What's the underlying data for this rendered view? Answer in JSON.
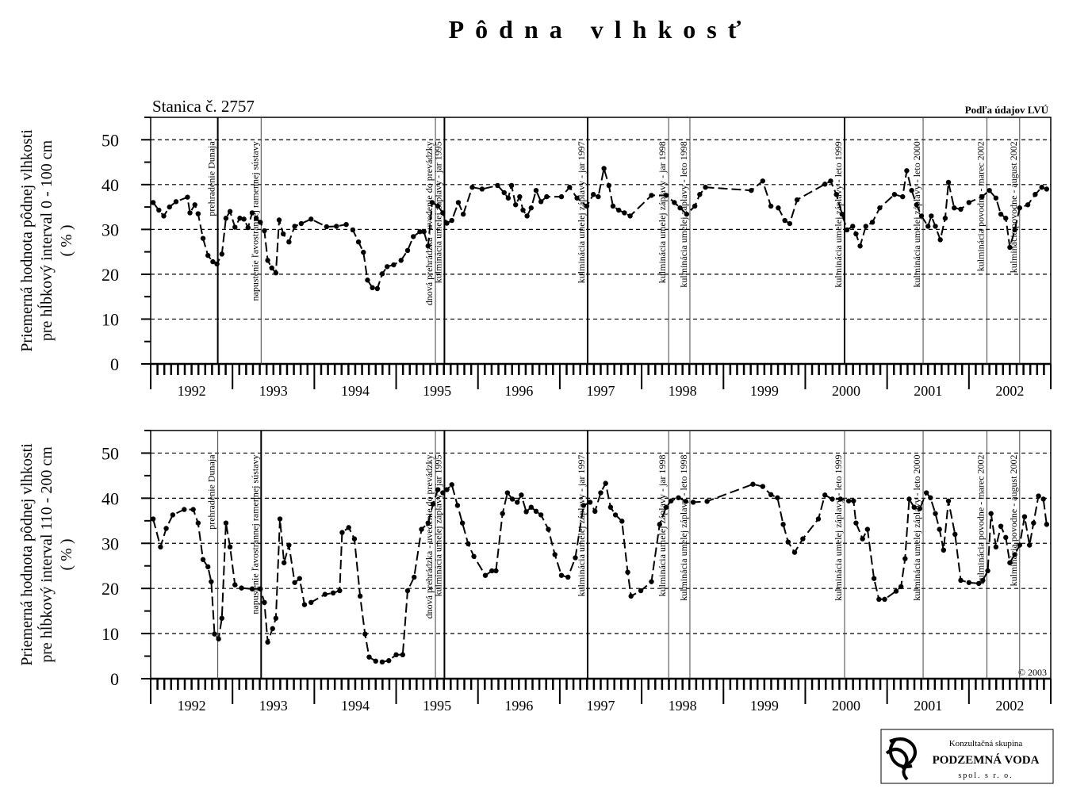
{
  "title": "Pôdna vlhkosť",
  "station": "Stanica č. 2757",
  "source": "Podľa údajov LVÚ",
  "copyright": "© 2003",
  "logo": {
    "line1": "Konzultačná skupina",
    "line2": "PODZEMNÁ VODA",
    "line3": "spol. s r. o."
  },
  "chart_data": [
    {
      "type": "line",
      "ylabel": [
        "Priemerná hodnota pôdnej vlhkosti",
        "pre hĺbkový interval 0 - 100 cm",
        "( % )"
      ],
      "xlim": [
        1992,
        2003
      ],
      "ylim": [
        0,
        55
      ],
      "yticks": [
        0,
        10,
        20,
        30,
        40,
        50
      ],
      "grid": true,
      "xticks": [
        {
          "value": 1992.5,
          "label": "1992"
        },
        {
          "value": 1993.5,
          "label": "1993"
        },
        {
          "value": 1994.5,
          "label": "1994"
        },
        {
          "value": 1995.5,
          "label": "1995"
        },
        {
          "value": 1996.5,
          "label": "1996"
        },
        {
          "value": 1997.5,
          "label": "1997"
        },
        {
          "value": 1998.5,
          "label": "1998"
        },
        {
          "value": 1999.5,
          "label": "1999"
        },
        {
          "value": 2000.5,
          "label": "2000"
        },
        {
          "value": 2001.5,
          "label": "2001"
        },
        {
          "value": 2002.5,
          "label": "2002"
        }
      ],
      "events": [
        {
          "x": 1992.82,
          "label": "prehradenie Dunaja",
          "thick": true
        },
        {
          "x": 1993.35,
          "label": "napustenie ľavostrannej ramennej sústavy",
          "thick": false
        },
        {
          "x": 1995.48,
          "label": "dnová prehrádzka - uvedenie do prevádzky",
          "thick": false
        },
        {
          "x": 1995.59,
          "label": "kulminácia umelej záplavy - jar 1995",
          "thick": true
        },
        {
          "x": 1997.34,
          "label": "kulminácia umelej záplavy - jar 1997",
          "thick": true
        },
        {
          "x": 1998.33,
          "label": "kulminácia umelej záplavy - jar 1998",
          "thick": false
        },
        {
          "x": 1998.59,
          "label": "kulminácia umelej záplavy - leto 1998",
          "thick": false
        },
        {
          "x": 2000.48,
          "label": "kulminácia umelej záplavy - leto 1999",
          "thick": true
        },
        {
          "x": 2001.44,
          "label": "kulminácia umelej záplavy - leto 2000",
          "thick": false
        },
        {
          "x": 2002.22,
          "label": "kulminácia povodne - marec 2002",
          "thick": false
        },
        {
          "x": 2002.62,
          "label": "kulminácia povodne - august 2002",
          "thick": false
        }
      ],
      "series": [
        {
          "color": "#000000",
          "x": [
            1992.03,
            1992.1,
            1992.16,
            1992.23,
            1992.31,
            1992.45,
            1992.48,
            1992.54,
            1992.58,
            1992.64,
            1992.7,
            1992.76,
            1992.81,
            1992.87,
            1992.92,
            1992.97,
            1993.03,
            1993.09,
            1993.14,
            1993.19,
            1993.24,
            1993.29,
            1993.34,
            1993.39,
            1993.43,
            1993.48,
            1993.53,
            1993.57,
            1993.62,
            1993.69,
            1993.76,
            1993.84,
            1993.96,
            1994.15,
            1994.27,
            1994.39,
            1994.47,
            1994.54,
            1994.6,
            1994.65,
            1994.71,
            1994.77,
            1994.83,
            1994.89,
            1994.97,
            1995.06,
            1995.14,
            1995.21,
            1995.29,
            1995.34,
            1995.39,
            1995.44,
            1995.51,
            1995.57,
            1995.62,
            1995.68,
            1995.76,
            1995.82,
            1995.93,
            1996.05,
            1996.24,
            1996.32,
            1996.37,
            1996.41,
            1996.46,
            1996.51,
            1996.55,
            1996.6,
            1996.65,
            1996.71,
            1996.77,
            1996.84,
            1997.02,
            1997.12,
            1997.21,
            1997.33,
            1997.41,
            1997.47,
            1997.54,
            1997.6,
            1997.65,
            1997.72,
            1997.79,
            1997.86,
            1998.12,
            1998.3,
            1998.4,
            1998.47,
            1998.55,
            1998.65,
            1998.71,
            1998.78,
            1999.34,
            1999.48,
            1999.58,
            1999.67,
            1999.75,
            1999.81,
            1999.9,
            2000.24,
            2000.31,
            2000.38,
            2000.45,
            2000.51,
            2000.58,
            2000.62,
            2000.67,
            2000.74,
            2000.82,
            2000.91,
            2001.09,
            2001.19,
            2001.24,
            2001.3,
            2001.36,
            2001.42,
            2001.5,
            2001.54,
            2001.59,
            2001.65,
            2001.71,
            2001.75,
            2001.82,
            2001.9,
            2002.0,
            2002.16,
            2002.25,
            2002.33,
            2002.39,
            2002.45,
            2002.5,
            2002.56,
            2002.62,
            2002.72,
            2002.81,
            2002.89,
            2002.95
          ],
          "values": [
            36,
            34.3,
            33,
            35,
            36.2,
            37.2,
            33.7,
            35.5,
            33.5,
            28,
            24.2,
            22.8,
            22.3,
            24.5,
            32.5,
            34,
            30.5,
            32.5,
            32.3,
            30.4,
            33.7,
            32.5,
            31.6,
            29.7,
            23.1,
            21.4,
            20.3,
            32.1,
            29,
            27.2,
            30.7,
            31.3,
            32.3,
            30.6,
            30.7,
            31.1,
            29.9,
            27.2,
            24.9,
            18.7,
            17,
            16.8,
            20.1,
            21.7,
            22.1,
            23.1,
            25.3,
            28.4,
            29.5,
            29.5,
            26.3,
            36,
            35.2,
            33.7,
            31.4,
            32,
            36,
            33.4,
            39.4,
            39,
            39.8,
            38.2,
            37,
            39.8,
            35.5,
            37.3,
            34.3,
            33,
            34.8,
            38.7,
            36.2,
            37.3,
            37.3,
            39.4,
            37,
            35.2,
            37.8,
            37.3,
            43.6,
            39.8,
            35.2,
            34.3,
            33.7,
            33,
            37.6,
            37.6,
            36,
            34.8,
            33.4,
            35.2,
            37.8,
            39.4,
            38.7,
            40.8,
            35.2,
            34.8,
            32,
            31.3,
            36.6,
            40.1,
            40.8,
            37.8,
            33.4,
            29.9,
            30.7,
            29,
            26.3,
            30.7,
            31.6,
            34.8,
            37.8,
            37.3,
            43.1,
            38.7,
            35.5,
            33,
            30.7,
            33,
            30.7,
            27.7,
            32.5,
            40.5,
            34.8,
            34.5,
            36,
            37.3,
            38.7,
            37,
            33.4,
            32.5,
            26,
            29.9,
            34.8,
            35.5,
            37.8,
            39.4,
            39
          ]
        }
      ]
    },
    {
      "type": "line",
      "ylabel": [
        "Priemerná hodnota pôdnej vlhkosti",
        "pre hĺbkový interval 110 - 200 cm",
        "( % )"
      ],
      "xlim": [
        1992,
        2003
      ],
      "ylim": [
        0,
        55
      ],
      "yticks": [
        0,
        10,
        20,
        30,
        40,
        50
      ],
      "grid": true,
      "xticks": [
        {
          "value": 1992.5,
          "label": "1992"
        },
        {
          "value": 1993.5,
          "label": "1993"
        },
        {
          "value": 1994.5,
          "label": "1994"
        },
        {
          "value": 1995.5,
          "label": "1995"
        },
        {
          "value": 1996.5,
          "label": "1996"
        },
        {
          "value": 1997.5,
          "label": "1997"
        },
        {
          "value": 1998.5,
          "label": "1998"
        },
        {
          "value": 1999.5,
          "label": "1999"
        },
        {
          "value": 2000.5,
          "label": "2000"
        },
        {
          "value": 2001.5,
          "label": "2001"
        },
        {
          "value": 2002.5,
          "label": "2002"
        }
      ],
      "events": [
        {
          "x": 1992.82,
          "label": "prehradenie Dunaja",
          "thick": false
        },
        {
          "x": 1993.35,
          "label": "napustenie ľavostrannej ramennej sústavy",
          "thick": true
        },
        {
          "x": 1995.48,
          "label": "dnová prehrádzka - uvedenie do prevádzky",
          "thick": false
        },
        {
          "x": 1995.59,
          "label": "kulminácia umelej záplavy - jar 1995",
          "thick": true
        },
        {
          "x": 1997.34,
          "label": "kulminácia umelej záplavy - jar 1997",
          "thick": true
        },
        {
          "x": 1998.33,
          "label": "kulminácia umelej záplavy - jar 1998",
          "thick": false
        },
        {
          "x": 1998.59,
          "label": "kulminácia umelej záplavy - leto 1998",
          "thick": false
        },
        {
          "x": 2000.48,
          "label": "kulminácia umelej záplavy - leto 1999",
          "thick": false
        },
        {
          "x": 2001.44,
          "label": "kulminácia umelej záplavy - leto 2000",
          "thick": false
        },
        {
          "x": 2002.22,
          "label": "kulminácia povodne - marec 2002",
          "thick": false
        },
        {
          "x": 2002.62,
          "label": "kulminácia povodne - august 2002",
          "thick": false
        }
      ],
      "series": [
        {
          "color": "#000000",
          "x": [
            1992.03,
            1992.12,
            1992.19,
            1992.27,
            1992.41,
            1992.52,
            1992.58,
            1992.64,
            1992.7,
            1992.74,
            1992.78,
            1992.83,
            1992.87,
            1992.92,
            1992.97,
            1993.03,
            1993.11,
            1993.24,
            1993.34,
            1993.39,
            1993.43,
            1993.49,
            1993.53,
            1993.58,
            1993.63,
            1993.69,
            1993.76,
            1993.82,
            1993.88,
            1993.96,
            1994.13,
            1994.23,
            1994.31,
            1994.34,
            1994.42,
            1994.49,
            1994.56,
            1994.62,
            1994.67,
            1994.75,
            1994.83,
            1994.91,
            1995.0,
            1995.08,
            1995.14,
            1995.22,
            1995.31,
            1995.39,
            1995.45,
            1995.51,
            1995.57,
            1995.62,
            1995.68,
            1995.75,
            1995.81,
            1995.88,
            1995.95,
            1996.09,
            1996.17,
            1996.22,
            1996.3,
            1996.36,
            1996.42,
            1996.48,
            1996.53,
            1996.59,
            1996.65,
            1996.71,
            1996.77,
            1996.86,
            1996.94,
            1997.02,
            1997.1,
            1997.19,
            1997.29,
            1997.37,
            1997.43,
            1997.5,
            1997.56,
            1997.62,
            1997.68,
            1997.76,
            1997.83,
            1997.87,
            1997.99,
            1998.12,
            1998.22,
            1998.3,
            1998.36,
            1998.45,
            1998.54,
            1998.63,
            1998.8,
            1999.36,
            1999.48,
            1999.58,
            1999.66,
            1999.73,
            1999.79,
            1999.87,
            1999.97,
            2000.16,
            2000.24,
            2000.33,
            2000.43,
            2000.53,
            2000.59,
            2000.62,
            2000.7,
            2000.76,
            2000.84,
            2000.9,
            2000.97,
            2001.11,
            2001.17,
            2001.22,
            2001.27,
            2001.33,
            2001.4,
            2001.48,
            2001.53,
            2001.59,
            2001.64,
            2001.69,
            2001.75,
            2001.83,
            2001.9,
            2002.0,
            2002.12,
            2002.17,
            2002.23,
            2002.27,
            2002.33,
            2002.39,
            2002.45,
            2002.5,
            2002.56,
            2002.62,
            2002.68,
            2002.74,
            2002.79,
            2002.85,
            2002.91,
            2002.95
          ],
          "values": [
            35.4,
            29.2,
            33.3,
            36.3,
            37.5,
            37.5,
            34.5,
            26.4,
            24.8,
            21.5,
            9.9,
            8.8,
            13.4,
            34.5,
            29.2,
            20.8,
            20.1,
            19.9,
            19.9,
            16.9,
            8.1,
            11.1,
            13.4,
            35.4,
            25.7,
            29.6,
            21.3,
            22.2,
            16.4,
            16.9,
            18.7,
            19,
            19.5,
            32.4,
            33.5,
            31,
            18.3,
            9.9,
            4.8,
            3.9,
            3.7,
            4,
            5.3,
            5.3,
            19.5,
            22.5,
            33.1,
            34.5,
            38.7,
            41.9,
            41.2,
            41.9,
            43,
            38.4,
            34.5,
            29.9,
            27.1,
            22.9,
            23.9,
            23.9,
            36.6,
            41.2,
            39.8,
            39.1,
            40.7,
            37,
            38,
            37.1,
            36.3,
            33.1,
            27.5,
            22.9,
            22.5,
            26.8,
            38.4,
            39.1,
            37.1,
            41.2,
            43.3,
            38,
            36.3,
            34.9,
            23.6,
            18.3,
            19.5,
            21.5,
            34.2,
            38,
            39.4,
            40.1,
            39.3,
            39.1,
            39.3,
            43.1,
            42.6,
            40.8,
            40.1,
            34.2,
            30.3,
            28,
            31,
            35.4,
            40.7,
            39.8,
            39.8,
            39.4,
            39.4,
            34.5,
            31,
            33.1,
            22.2,
            17.6,
            17.6,
            19.4,
            20.4,
            26.6,
            39.8,
            38,
            37.7,
            41.2,
            40.1,
            36.6,
            33.1,
            28.5,
            39.4,
            32,
            21.8,
            21.3,
            21.1,
            21.8,
            23.9,
            36.6,
            29.2,
            33.8,
            31.3,
            25.7,
            27.5,
            29.6,
            35.9,
            29.6,
            34.5,
            40.5,
            39.8,
            34.2
          ]
        }
      ]
    }
  ]
}
